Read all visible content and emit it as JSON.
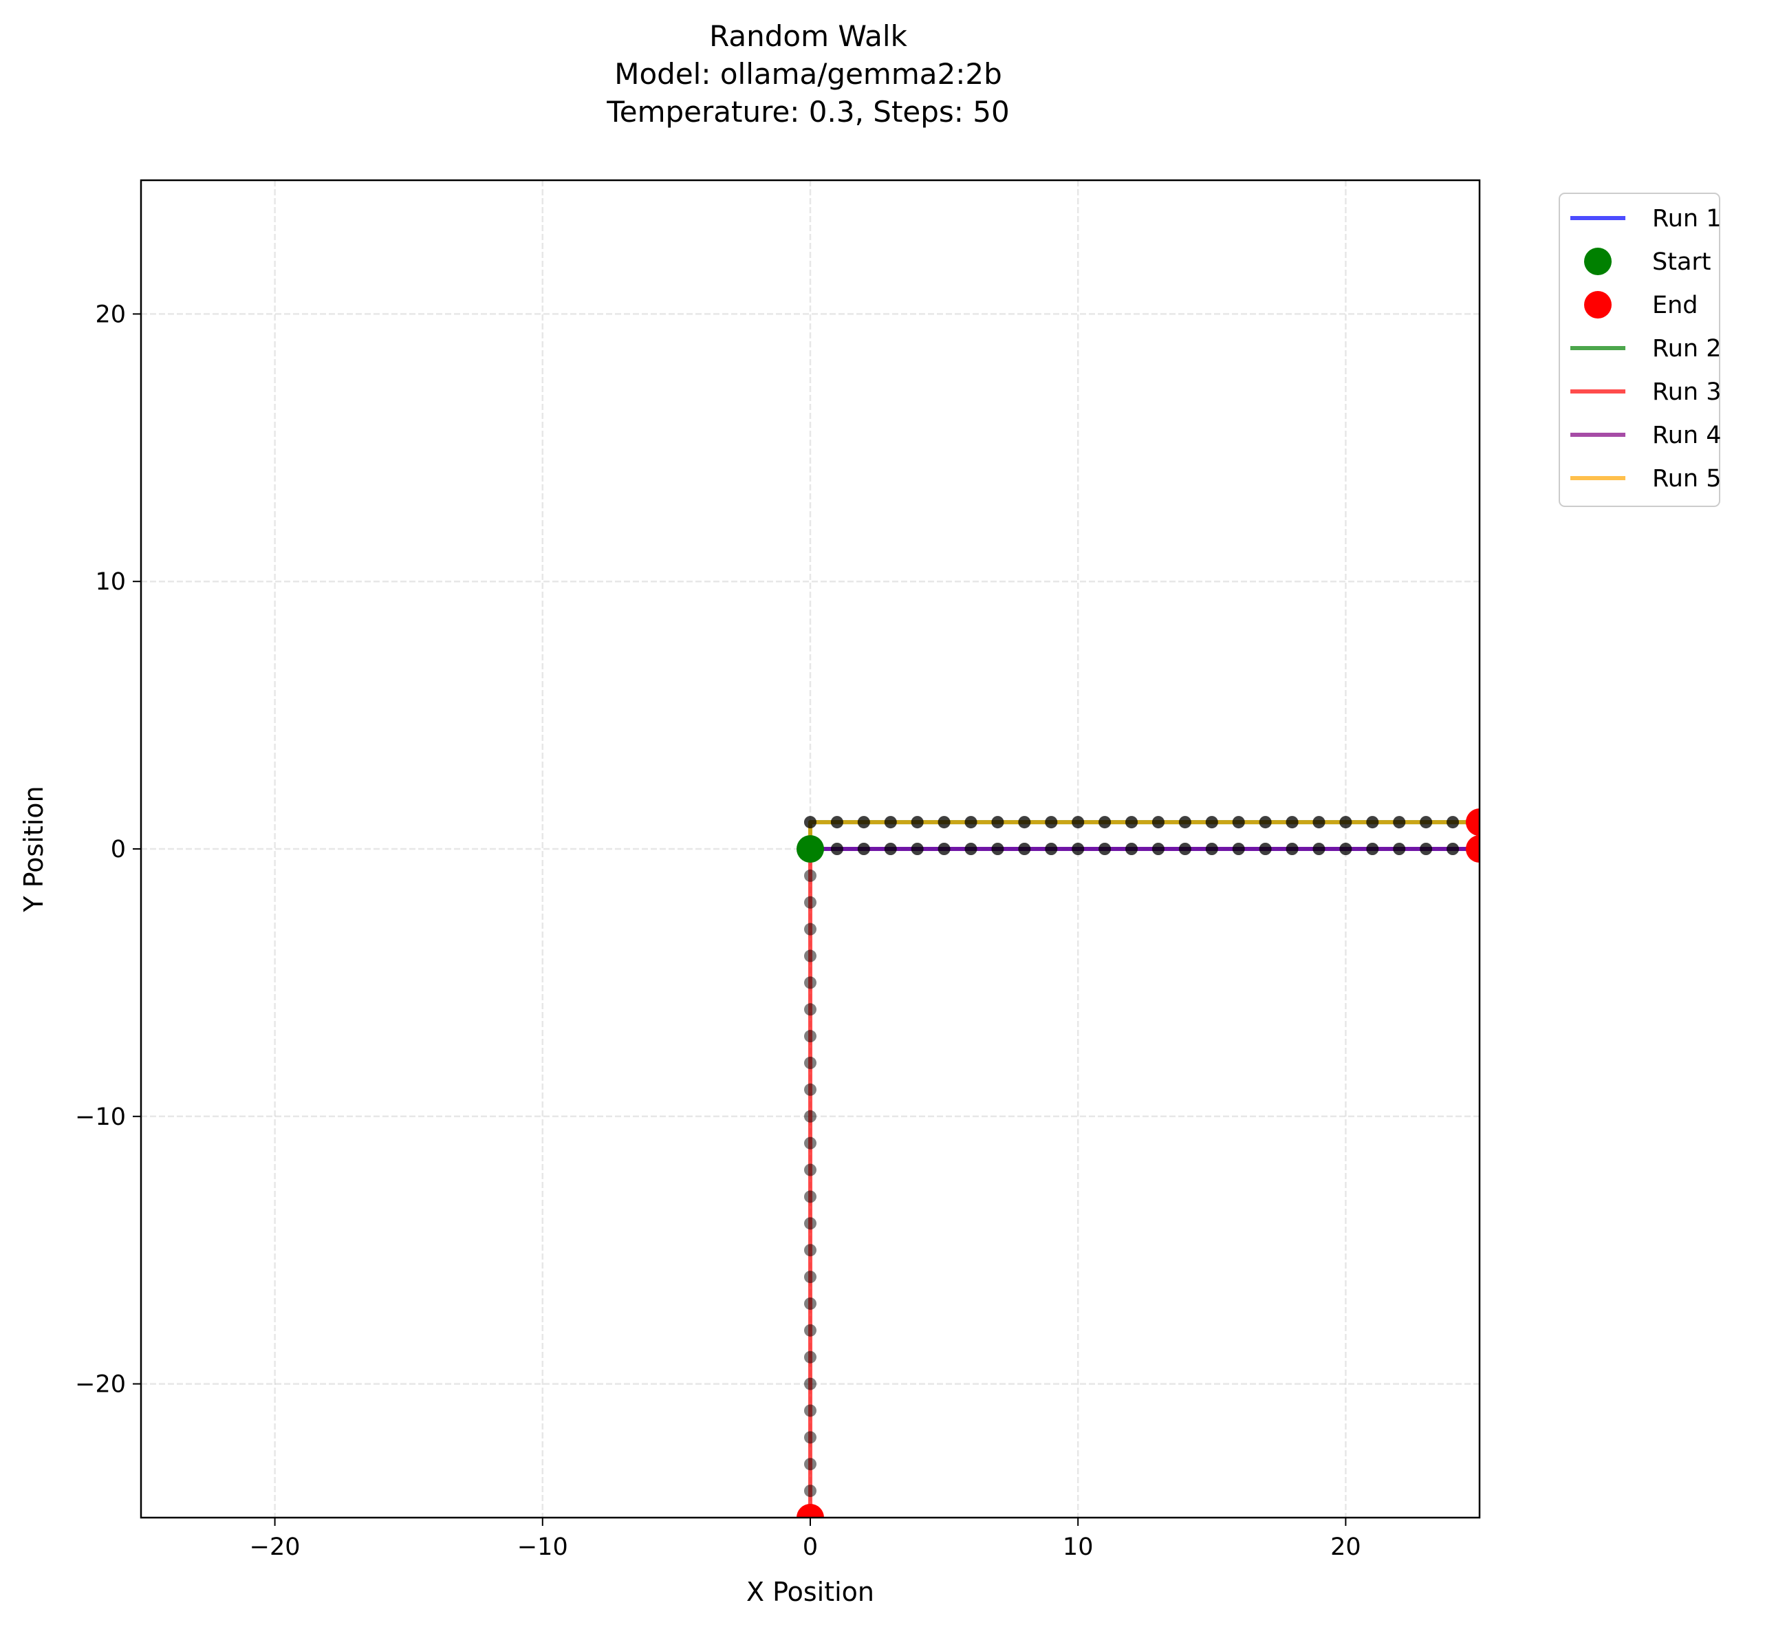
{
  "chart_data": {
    "type": "line",
    "title_lines": [
      "Random Walk",
      "Model: ollama/gemma2:2b",
      "Temperature: 0.3, Steps: 50"
    ],
    "xlabel": "X Position",
    "ylabel": "Y Position",
    "xlim": [
      -25,
      25
    ],
    "ylim": [
      -25,
      25
    ],
    "x_ticks": [
      -20,
      -10,
      0,
      10,
      20
    ],
    "y_ticks": [
      -20,
      -10,
      0,
      10,
      20
    ],
    "x_tick_labels": [
      "−20",
      "−10",
      "0",
      "10",
      "20"
    ],
    "y_tick_labels": [
      "−20",
      "−10",
      "0",
      "10",
      "20"
    ],
    "grid": true,
    "legend_position": "outside-upper-right",
    "legend": [
      {
        "label": "Run 1",
        "kind": "line",
        "color": "#0000ff"
      },
      {
        "label": "Start",
        "kind": "marker",
        "color": "#008000"
      },
      {
        "label": "End",
        "kind": "marker",
        "color": "#ff0000"
      },
      {
        "label": "Run 2",
        "kind": "line",
        "color": "#008000"
      },
      {
        "label": "Run 3",
        "kind": "line",
        "color": "#ff0000"
      },
      {
        "label": "Run 4",
        "kind": "line",
        "color": "#800080"
      },
      {
        "label": "Run 5",
        "kind": "line",
        "color": "#ffa500"
      }
    ],
    "series": [
      {
        "name": "Run 1",
        "color": "#0000ff",
        "path": [
          [
            0,
            0
          ],
          [
            25,
            0
          ]
        ],
        "step": 1
      },
      {
        "name": "Run 2",
        "color": "#008000",
        "path": [
          [
            0,
            0
          ],
          [
            0,
            1
          ],
          [
            25,
            1
          ]
        ],
        "step": 1
      },
      {
        "name": "Run 3",
        "color": "#ff0000",
        "path": [
          [
            0,
            0
          ],
          [
            0,
            -25
          ]
        ],
        "step": 1
      },
      {
        "name": "Run 4",
        "color": "#800080",
        "path": [
          [
            0,
            0
          ],
          [
            25,
            0
          ]
        ],
        "step": 1
      },
      {
        "name": "Run 5",
        "color": "#ffa500",
        "path": [
          [
            0,
            0
          ],
          [
            0,
            1
          ],
          [
            25,
            1
          ]
        ],
        "step": 1
      }
    ],
    "start_point": [
      0,
      0
    ],
    "end_points": [
      [
        25,
        0
      ],
      [
        25,
        1
      ],
      [
        0,
        -25
      ]
    ],
    "step_marker_color": "#000000"
  }
}
